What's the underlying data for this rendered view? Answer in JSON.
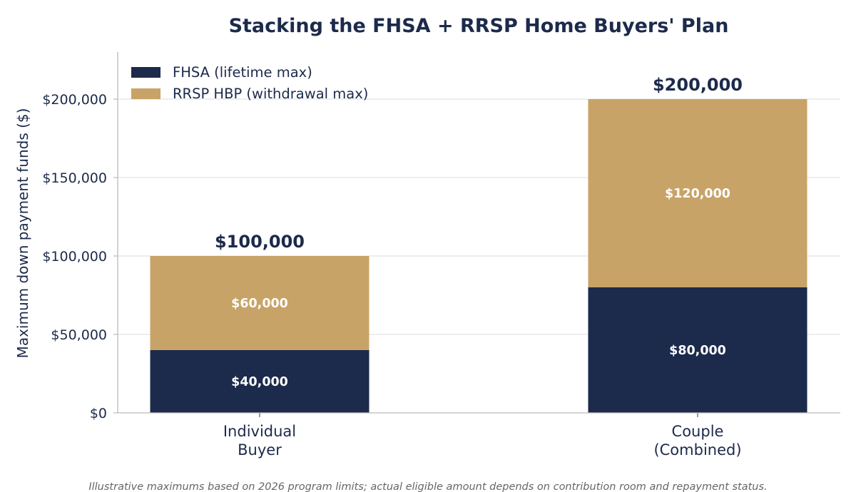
{
  "chart_data": {
    "type": "bar",
    "stacked": true,
    "title": "Stacking the FHSA + RRSP Home Buyers' Plan",
    "ylabel": "Maximum down payment funds ($)",
    "xlabel": "",
    "categories": [
      [
        "Individual",
        "Buyer"
      ],
      [
        "Couple",
        "(Combined)"
      ]
    ],
    "series": [
      {
        "name": "FHSA (lifetime max)",
        "values": [
          40000,
          80000
        ],
        "labels": [
          "$40,000",
          "$80,000"
        ],
        "color": "#1c2a4b"
      },
      {
        "name": "RRSP HBP (withdrawal max)",
        "values": [
          60000,
          120000
        ],
        "labels": [
          "$60,000",
          "$120,000"
        ],
        "color": "#c8a367"
      }
    ],
    "totals": [
      "$100,000",
      "$200,000"
    ],
    "ylim": [
      0,
      230000
    ],
    "yticks": [
      0,
      50000,
      100000,
      150000,
      200000
    ],
    "ytick_labels": [
      "$0",
      "$50,000",
      "$100,000",
      "$150,000",
      "$200,000"
    ],
    "grid": "y",
    "legend_position": "top-left",
    "note": "Illustrative maximums based on 2026 program limits; actual eligible amount depends on contribution room and repayment status."
  }
}
